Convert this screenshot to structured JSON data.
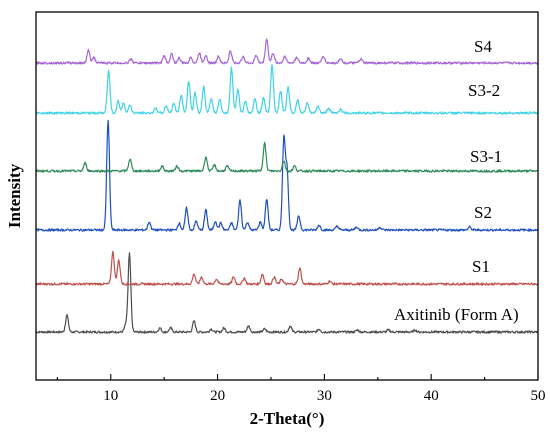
{
  "chart_data": {
    "type": "line",
    "xlabel": "2-Theta(°)",
    "ylabel": "Intensity",
    "xlim": [
      3,
      50
    ],
    "xticks": [
      10,
      20,
      30,
      40,
      50
    ],
    "yaxis_ticks": false,
    "grid": false,
    "legend": "inline labels right of each trace",
    "series": [
      {
        "name": "Axitinib (Form A)",
        "color": "#4d4d4d",
        "offset": 0,
        "peaks": [
          [
            5.9,
            17
          ],
          [
            11.4,
            7
          ],
          [
            11.75,
            78
          ],
          [
            14.6,
            4
          ],
          [
            15.6,
            4
          ],
          [
            17.8,
            11
          ],
          [
            19.4,
            3
          ],
          [
            20.6,
            4
          ],
          [
            22.9,
            6
          ],
          [
            24.4,
            3
          ],
          [
            26.8,
            6
          ],
          [
            29.5,
            3
          ],
          [
            33.1,
            2
          ],
          [
            36.0,
            2
          ],
          [
            38.5,
            2
          ]
        ]
      },
      {
        "name": "S1",
        "color": "#c0504d",
        "offset": 50,
        "peaks": [
          [
            10.2,
            32
          ],
          [
            10.75,
            24
          ],
          [
            17.8,
            10
          ],
          [
            18.5,
            7
          ],
          [
            19.9,
            5
          ],
          [
            21.5,
            7
          ],
          [
            22.5,
            6
          ],
          [
            24.2,
            10
          ],
          [
            25.3,
            7
          ],
          [
            26.0,
            5
          ],
          [
            27.7,
            16
          ],
          [
            30.5,
            3
          ]
        ]
      },
      {
        "name": "S2",
        "color": "#1f4fbf",
        "offset": 104,
        "peaks": [
          [
            9.75,
            110
          ],
          [
            13.6,
            8
          ],
          [
            16.4,
            7
          ],
          [
            17.1,
            22
          ],
          [
            18.0,
            9
          ],
          [
            18.9,
            20
          ],
          [
            19.8,
            9
          ],
          [
            20.3,
            7
          ],
          [
            21.3,
            7
          ],
          [
            22.1,
            30
          ],
          [
            22.8,
            8
          ],
          [
            24.0,
            8
          ],
          [
            24.6,
            31
          ],
          [
            26.2,
            90
          ],
          [
            26.5,
            60
          ],
          [
            27.6,
            14
          ],
          [
            29.5,
            5
          ],
          [
            31.2,
            4
          ],
          [
            33.0,
            3
          ],
          [
            35.2,
            3
          ],
          [
            43.6,
            3
          ]
        ]
      },
      {
        "name": "S3-1",
        "color": "#2e8b57",
        "offset": 162,
        "peaks": [
          [
            7.6,
            8
          ],
          [
            11.8,
            12
          ],
          [
            14.8,
            5
          ],
          [
            16.2,
            5
          ],
          [
            18.9,
            14
          ],
          [
            19.7,
            6
          ],
          [
            20.9,
            5
          ],
          [
            24.4,
            28
          ],
          [
            26.2,
            10
          ],
          [
            27.2,
            5
          ]
        ]
      },
      {
        "name": "S3-2",
        "color": "#3fd3e6",
        "offset": 216,
        "peaks": [
          [
            9.8,
            42
          ],
          [
            10.7,
            12
          ],
          [
            11.2,
            10
          ],
          [
            11.8,
            8
          ],
          [
            14.2,
            5
          ],
          [
            15.2,
            7
          ],
          [
            15.9,
            10
          ],
          [
            16.6,
            18
          ],
          [
            17.3,
            32
          ],
          [
            17.9,
            20
          ],
          [
            18.7,
            26
          ],
          [
            19.4,
            15
          ],
          [
            20.2,
            14
          ],
          [
            21.3,
            45
          ],
          [
            21.9,
            24
          ],
          [
            22.6,
            12
          ],
          [
            23.5,
            14
          ],
          [
            24.3,
            16
          ],
          [
            25.1,
            48
          ],
          [
            25.9,
            22
          ],
          [
            26.6,
            26
          ],
          [
            27.5,
            14
          ],
          [
            28.4,
            10
          ],
          [
            29.4,
            7
          ],
          [
            30.4,
            5
          ],
          [
            31.5,
            4
          ]
        ]
      },
      {
        "name": "S4",
        "color": "#a565d6",
        "offset": 270,
        "peaks": [
          [
            7.9,
            13
          ],
          [
            8.4,
            6
          ],
          [
            11.9,
            4
          ],
          [
            15.0,
            7
          ],
          [
            15.7,
            9
          ],
          [
            16.4,
            5
          ],
          [
            17.5,
            6
          ],
          [
            18.3,
            10
          ],
          [
            18.9,
            8
          ],
          [
            20.1,
            7
          ],
          [
            21.2,
            12
          ],
          [
            22.4,
            7
          ],
          [
            23.6,
            8
          ],
          [
            24.6,
            24
          ],
          [
            25.2,
            10
          ],
          [
            26.3,
            7
          ],
          [
            27.4,
            6
          ],
          [
            28.5,
            5
          ],
          [
            29.9,
            7
          ],
          [
            31.5,
            5
          ],
          [
            33.4,
            4
          ]
        ]
      }
    ]
  }
}
